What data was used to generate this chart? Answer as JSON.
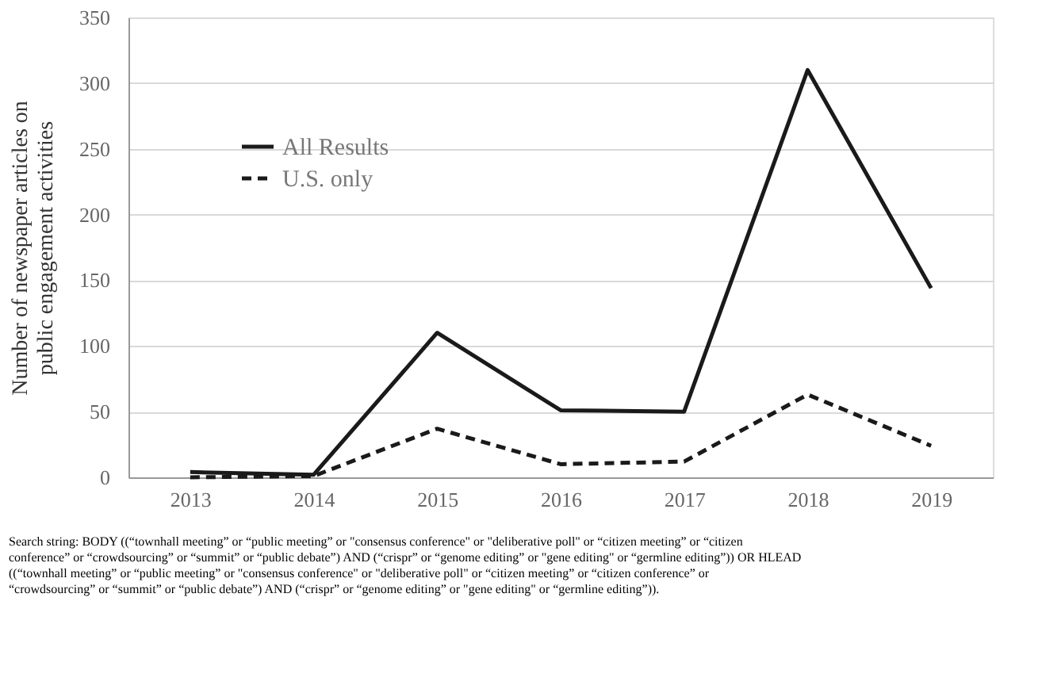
{
  "chart_data": {
    "type": "line",
    "ylabel": "Number of newspaper articles on public engagement activities",
    "categories": [
      "2013",
      "2014",
      "2015",
      "2016",
      "2017",
      "2018",
      "2019"
    ],
    "series": [
      {
        "name": "All Results",
        "color": "#1a1a1a",
        "line_style": "solid",
        "values": [
          4,
          2,
          110,
          51,
          50,
          310,
          144
        ]
      },
      {
        "name": "U.S. only",
        "color": "#1a1a1a",
        "line_style": "dashed",
        "values": [
          0,
          1,
          37,
          10,
          12,
          63,
          24
        ]
      }
    ],
    "ylim": [
      0,
      350
    ],
    "yticks": [
      0,
      50,
      100,
      150,
      200,
      250,
      300,
      350
    ],
    "grid": "y",
    "legend": "top left",
    "marker": "none",
    "annotations": [
      "Search string:  BODY ((“townhall meeting” or “public meeting” or \"consensus conference\" or \"deliberative poll\" or “citizen meeting” or “citizen conference” or “crowdsourcing” or “summit” or “public debate”) AND (“crispr” or “genome editing” or \"gene editing\" or “germline editing”)) OR HLEAD ((“townhall meeting” or “public meeting” or \"consensus conference\" or \"deliberative poll\" or “citizen meeting” or “citizen conference” or “crowdsourcing” or “summit” or “public debate”) AND (“crispr” or “genome editing” or \"gene editing\" or “germline editing”))."
    ]
  }
}
